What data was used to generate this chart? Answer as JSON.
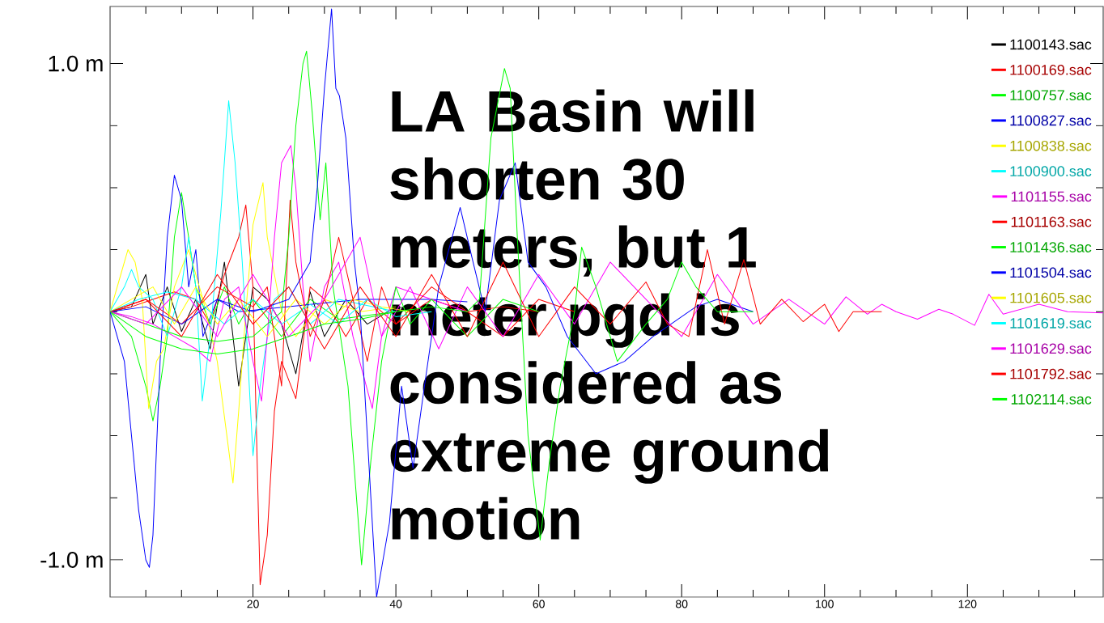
{
  "chart_data": {
    "type": "line",
    "annotations": [
      "LA Basin will shorten 30 meters, but 1 meter pgd is considered as extreme ground motion"
    ],
    "xlim": [
      0,
      139
    ],
    "ylim": [
      -1.15,
      1.23
    ],
    "xticks": [
      {
        "value": 5,
        "label": null
      },
      {
        "value": 10,
        "label": null
      },
      {
        "value": 15,
        "label": null
      },
      20,
      {
        "value": 25,
        "label": null
      },
      {
        "value": 30,
        "label": null
      },
      {
        "value": 35,
        "label": null
      },
      40,
      {
        "value": 45,
        "label": null
      },
      {
        "value": 50,
        "label": null
      },
      {
        "value": 55,
        "label": null
      },
      60,
      {
        "value": 65,
        "label": null
      },
      {
        "value": 70,
        "label": null
      },
      {
        "value": 75,
        "label": null
      },
      80,
      {
        "value": 85,
        "label": null
      },
      {
        "value": 90,
        "label": null
      },
      {
        "value": 95,
        "label": null
      },
      100,
      {
        "value": 105,
        "label": null
      },
      {
        "value": 110,
        "label": null
      },
      {
        "value": 115,
        "label": null
      },
      120,
      {
        "value": 125,
        "label": null
      },
      {
        "value": 130,
        "label": null
      },
      {
        "value": 135,
        "label": null
      }
    ],
    "yticks": [
      {
        "value": -1,
        "label": "-1.0 m"
      },
      {
        "value": -0.75,
        "label": null
      },
      {
        "value": -0.5,
        "label": null
      },
      {
        "value": -0.25,
        "label": null
      },
      {
        "value": 0,
        "label": null
      },
      {
        "value": 0.25,
        "label": null
      },
      {
        "value": 0.5,
        "label": null
      },
      {
        "value": 0.75,
        "label": null
      },
      {
        "value": 1,
        "label": "1.0 m"
      }
    ],
    "legend": "top right",
    "series": [
      {
        "name": "1100143.sac",
        "color": "#000000",
        "x": [
          0,
          3,
          5,
          6,
          8,
          10,
          12,
          14,
          16,
          18,
          20,
          22,
          24,
          26,
          28,
          30,
          33,
          36,
          40,
          45
        ],
        "values": [
          0,
          0.02,
          0.15,
          -0.05,
          0.1,
          -0.08,
          0.05,
          -0.15,
          0.2,
          -0.3,
          0.1,
          0.05,
          -0.05,
          -0.25,
          0.08,
          -0.1,
          0.05,
          -0.05,
          0.02,
          0
        ]
      },
      {
        "name": "1100169.sac",
        "color": "#ff0000",
        "x": [
          0,
          3,
          6,
          9,
          12,
          14,
          16,
          18,
          19,
          20,
          20.5,
          21,
          22,
          23,
          24,
          26,
          28,
          30,
          33,
          36,
          40,
          45,
          50,
          55,
          60
        ],
        "values": [
          0,
          0.02,
          0.05,
          0.08,
          0.05,
          -0.05,
          0.15,
          0.3,
          0.43,
          0.1,
          -0.5,
          -1.1,
          -0.9,
          -0.4,
          -0.2,
          -0.35,
          0.1,
          0.05,
          -0.1,
          0.05,
          -0.05,
          0.05,
          0,
          0.02,
          0
        ]
      },
      {
        "name": "1100757.sac",
        "color": "#00ff00",
        "x": [
          0,
          3,
          5,
          6,
          7,
          8,
          9,
          10,
          11,
          12,
          14,
          16,
          18,
          20,
          24,
          28,
          32,
          40
        ],
        "values": [
          0,
          -0.1,
          -0.3,
          -0.44,
          -0.3,
          -0.1,
          0.3,
          0.48,
          0.3,
          0.1,
          -0.05,
          0.1,
          -0.05,
          0.05,
          -0.1,
          0.05,
          -0.03,
          0
        ]
      },
      {
        "name": "1100827.sac",
        "color": "#0000ff",
        "x": [
          0,
          2,
          3,
          4,
          5,
          5.5,
          6,
          7,
          8,
          9,
          10,
          11,
          12,
          13,
          15,
          18,
          25,
          35,
          45,
          50
        ],
        "values": [
          0,
          -0.2,
          -0.5,
          -0.8,
          -1.0,
          -1.03,
          -0.9,
          -0.2,
          0.3,
          0.55,
          0.45,
          0.1,
          0.25,
          -0.1,
          0.05,
          0,
          0.02,
          0.05,
          0.05,
          0.04
        ]
      },
      {
        "name": "1100838.sac",
        "color": "#ffff00",
        "x": [
          0,
          1.5,
          2.5,
          3.5,
          4.5,
          5.4,
          6.5,
          7.5,
          9,
          11,
          13,
          15,
          17.2,
          18,
          19,
          20,
          21.4,
          22,
          24,
          26,
          30,
          35,
          40
        ],
        "values": [
          0,
          0.15,
          0.25,
          0.2,
          0.05,
          -0.39,
          -0.2,
          -0.15,
          0.1,
          0.25,
          0.05,
          -0.2,
          -0.69,
          -0.4,
          0,
          0.35,
          0.52,
          0.3,
          0,
          -0.1,
          0.05,
          0,
          0.02
        ]
      },
      {
        "name": "1100900.sac",
        "color": "#00ffff",
        "x": [
          0,
          2,
          3,
          4,
          6,
          8,
          10,
          11,
          12,
          12.9,
          14,
          15.5,
          16.6,
          17.5,
          18.5,
          19.3,
          20,
          21,
          22,
          23,
          25,
          28,
          32,
          40
        ],
        "values": [
          0,
          0.1,
          0.17,
          0.1,
          0.05,
          -0.1,
          0.1,
          0.3,
          0.1,
          -0.36,
          -0.1,
          0.4,
          0.85,
          0.6,
          0.2,
          -0.2,
          -0.58,
          -0.3,
          -0.1,
          0.05,
          0.1,
          -0.05,
          0.05,
          0
        ]
      },
      {
        "name": "1101155.sac",
        "color": "#ff00ff",
        "x": [
          0,
          3,
          6,
          9,
          12,
          14,
          16,
          18,
          20,
          21.2,
          22,
          23,
          24,
          25.3,
          26,
          27,
          28,
          30,
          32,
          34,
          36.7,
          38,
          40,
          45,
          50
        ],
        "values": [
          0,
          -0.02,
          -0.05,
          -0.1,
          -0.15,
          -0.2,
          0.05,
          0.1,
          -0.2,
          -0.36,
          -0.1,
          0.3,
          0.6,
          0.67,
          0.5,
          0.1,
          -0.2,
          0.1,
          0.2,
          -0.1,
          -0.39,
          -0.1,
          0.1,
          0.05,
          0
        ]
      },
      {
        "name": "1101163.sac",
        "color": "#ff0000",
        "x": [
          0,
          5,
          10,
          15,
          20,
          22,
          24,
          25.2,
          26,
          28,
          30,
          32,
          34,
          36,
          38,
          40,
          45,
          50,
          55,
          60,
          65
        ],
        "values": [
          0,
          0.05,
          -0.05,
          0.1,
          0.02,
          0.1,
          -0.3,
          0.45,
          0.2,
          -0.1,
          0.05,
          0.3,
          0.05,
          -0.2,
          0.1,
          -0.05,
          0.1,
          0,
          -0.1,
          0.05,
          0
        ]
      },
      {
        "name": "1101436.sac",
        "color": "#00ff00",
        "x": [
          0,
          5,
          10,
          15,
          20,
          24,
          25,
          26,
          27,
          27.5,
          28.3,
          29.4,
          30.2,
          31.2,
          33.3,
          35.2,
          36.5,
          38,
          40,
          42,
          45,
          50,
          55,
          60
        ],
        "values": [
          0,
          -0.05,
          -0.1,
          -0.12,
          -0.1,
          0,
          0.3,
          0.75,
          1.0,
          1.05,
          0.8,
          0.37,
          0.6,
          0.1,
          -0.3,
          -1.02,
          -0.6,
          -0.2,
          0.1,
          -0.05,
          0.05,
          -0.1,
          0.05,
          0
        ]
      },
      {
        "name": "1101504.sac",
        "color": "#0000ff",
        "x": [
          0,
          5,
          10,
          15,
          20,
          25,
          28,
          29,
          30,
          31,
          31.6,
          32.1,
          33,
          34.2,
          35,
          37.3,
          39.1,
          40.8,
          42.4,
          44,
          46,
          49,
          50.8,
          52.5,
          54.5,
          56.7,
          58.5,
          61,
          64,
          68,
          72,
          76,
          82,
          85,
          90
        ],
        "values": [
          0,
          0.02,
          -0.05,
          0.05,
          0,
          0.05,
          0.2,
          0.5,
          0.9,
          1.22,
          0.9,
          0.87,
          0.7,
          0.2,
          0,
          -1.15,
          -0.85,
          -0.3,
          -0.63,
          -0.3,
          0.1,
          0.42,
          0.2,
          0,
          0.45,
          0.6,
          0.2,
          0.1,
          -0.1,
          -0.25,
          -0.2,
          -0.1,
          0.02,
          0.05,
          0
        ]
      },
      {
        "name": "1101605.sac",
        "color": "#ffff00",
        "x": [
          0,
          3,
          6,
          9,
          12,
          15,
          18,
          22,
          26,
          30,
          34,
          38,
          42
        ],
        "values": [
          0,
          0.05,
          0.1,
          -0.05,
          0.1,
          -0.05,
          0.05,
          -0.1,
          0.05,
          -0.05,
          0.05,
          0.02,
          0
        ]
      },
      {
        "name": "1101619.sac",
        "color": "#00ffff",
        "x": [
          0,
          4,
          8,
          12,
          16,
          20,
          24,
          28,
          32,
          36,
          40,
          45
        ],
        "values": [
          0,
          0.05,
          0.08,
          0.05,
          -0.05,
          0.05,
          -0.05,
          0.03,
          -0.05,
          0.05,
          -0.02,
          0
        ]
      },
      {
        "name": "1101629.sac",
        "color": "#ff00ff",
        "x": [
          0,
          5,
          10,
          15,
          20,
          25,
          30,
          35,
          38,
          42,
          46,
          50,
          55,
          60,
          65,
          70,
          75,
          80,
          85,
          90,
          95,
          100,
          103,
          106,
          108,
          110,
          113,
          116,
          118,
          121,
          123,
          125,
          130,
          134,
          139
        ],
        "values": [
          0,
          -0.05,
          0.1,
          -0.1,
          0.15,
          -0.1,
          0.05,
          0.3,
          -0.1,
          0.1,
          -0.15,
          0.1,
          -0.1,
          0.15,
          -0.05,
          0.2,
          0.05,
          -0.1,
          0.15,
          -0.05,
          0.05,
          -0.05,
          0.06,
          -0.01,
          0.03,
          0,
          -0.03,
          0.01,
          -0.01,
          -0.055,
          0.07,
          -0.01,
          0.03,
          0,
          -0.005
        ]
      },
      {
        "name": "1101792.sac",
        "color": "#ff0000",
        "x": [
          0,
          5,
          10,
          15,
          20,
          25,
          30,
          35,
          40,
          45,
          50,
          55,
          60,
          65,
          70,
          75,
          78,
          81,
          83.6,
          86,
          88.7,
          91,
          94,
          97,
          100,
          102,
          104,
          108
        ],
        "values": [
          0,
          0.05,
          -0.1,
          0.15,
          -0.05,
          0.1,
          -0.15,
          0.1,
          -0.1,
          0.15,
          -0.1,
          0.2,
          -0.1,
          0.1,
          -0.05,
          0.12,
          -0.05,
          -0.1,
          0.25,
          -0.05,
          0.21,
          -0.05,
          0.05,
          -0.04,
          0.03,
          -0.08,
          0,
          0
        ]
      },
      {
        "name": "1102114.sac",
        "color": "#00ff00",
        "x": [
          0,
          5,
          10,
          15,
          20,
          25,
          30,
          35,
          40,
          45,
          50,
          51.7,
          53.3,
          54.8,
          55.2,
          56,
          57,
          58.5,
          60.2,
          61.5,
          63,
          65,
          66,
          68,
          71,
          75,
          78,
          80,
          82,
          85,
          90
        ],
        "values": [
          0,
          -0.1,
          -0.15,
          -0.17,
          -0.15,
          -0.1,
          -0.05,
          -0.03,
          0,
          0.02,
          0,
          0.05,
          0.7,
          0.92,
          0.98,
          0.9,
          0.3,
          -0.5,
          -0.92,
          -0.6,
          -0.3,
          0,
          0.26,
          0.1,
          -0.2,
          -0.05,
          0.05,
          0.2,
          0.1,
          0,
          0
        ]
      }
    ]
  }
}
